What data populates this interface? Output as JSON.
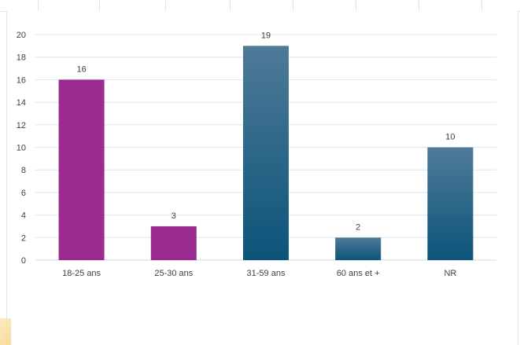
{
  "chart_data": {
    "type": "bar",
    "categories": [
      "18-25 ans",
      "25-30 ans",
      "31-59 ans",
      "60 ans et +",
      "NR"
    ],
    "values": [
      16,
      3,
      19,
      2,
      10
    ],
    "bar_colors": [
      "#9b2a8f",
      "#9b2a8f",
      "gradient-blue",
      "gradient-blue",
      "gradient-blue"
    ],
    "colors": {
      "magenta": "#9b2a8f",
      "blue_top": "#4f7a98",
      "blue_bottom": "#0b5479"
    },
    "title": "",
    "xlabel": "",
    "ylabel": "",
    "ylim": [
      0,
      20
    ],
    "yticks": [
      0,
      2,
      4,
      6,
      8,
      10,
      12,
      14,
      16,
      18,
      20
    ],
    "grid": true,
    "legend": "none",
    "data_labels": true
  }
}
